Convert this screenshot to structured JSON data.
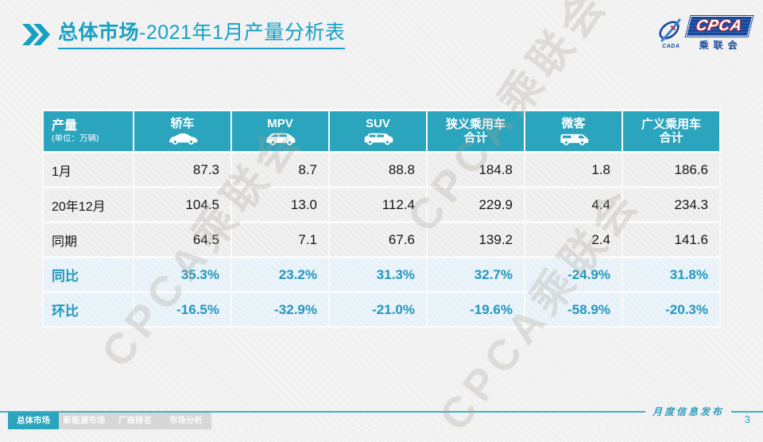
{
  "header": {
    "title_main": "总体市场",
    "title_rest": "-2021年1月产量分析表",
    "logo": {
      "cpca": "CPCA",
      "cn_name": "乘联会",
      "swoosh_caption": "CADA"
    }
  },
  "table": {
    "corner": {
      "title": "产量",
      "unit": "(单位：万辆)"
    },
    "columns": [
      {
        "label": "轿车",
        "icon": "sedan-icon"
      },
      {
        "label": "MPV",
        "icon": "mpv-icon"
      },
      {
        "label": "SUV",
        "icon": "suv-icon"
      },
      {
        "label": "狭义乘用车",
        "sublabel": "合计"
      },
      {
        "label": "微客",
        "icon": "microvan-icon"
      },
      {
        "label": "广义乘用车",
        "sublabel": "合计"
      }
    ],
    "rows": [
      {
        "label": "1月",
        "type": "data",
        "values": [
          "87.3",
          "8.7",
          "88.8",
          "184.8",
          "1.8",
          "186.6"
        ]
      },
      {
        "label": "20年12月",
        "type": "data",
        "values": [
          "104.5",
          "13.0",
          "112.4",
          "229.9",
          "4.4",
          "234.3"
        ]
      },
      {
        "label": "同期",
        "type": "data",
        "values": [
          "64.5",
          "7.1",
          "67.6",
          "139.2",
          "2.4",
          "141.6"
        ]
      },
      {
        "label": "同比",
        "type": "percent",
        "values": [
          "35.3%",
          "23.2%",
          "31.3%",
          "32.7%",
          "-24.9%",
          "31.8%"
        ]
      },
      {
        "label": "环比",
        "type": "percent",
        "values": [
          "-16.5%",
          "-32.9%",
          "-21.0%",
          "-19.6%",
          "-58.9%",
          "-20.3%"
        ]
      }
    ]
  },
  "watermark": {
    "text": "CPCA乘联会"
  },
  "footer": {
    "tabs": [
      {
        "label": "总体市场",
        "active": true
      },
      {
        "label": "新能源市场",
        "active": false
      },
      {
        "label": "厂商排名",
        "active": false
      },
      {
        "label": "市场分析",
        "active": false
      }
    ],
    "caption": "月度信息发布",
    "page": "3"
  },
  "colors": {
    "teal_header": "#2ba4bd",
    "teal_title": "#16a0c4",
    "teal_percent": "#2196bd",
    "row_gray": "#ededed",
    "row_blue": "#e7f1f8",
    "tab_inactive": "#d7d7d7",
    "logo_blue": "#16479a",
    "logo_red": "#d42a2a"
  }
}
